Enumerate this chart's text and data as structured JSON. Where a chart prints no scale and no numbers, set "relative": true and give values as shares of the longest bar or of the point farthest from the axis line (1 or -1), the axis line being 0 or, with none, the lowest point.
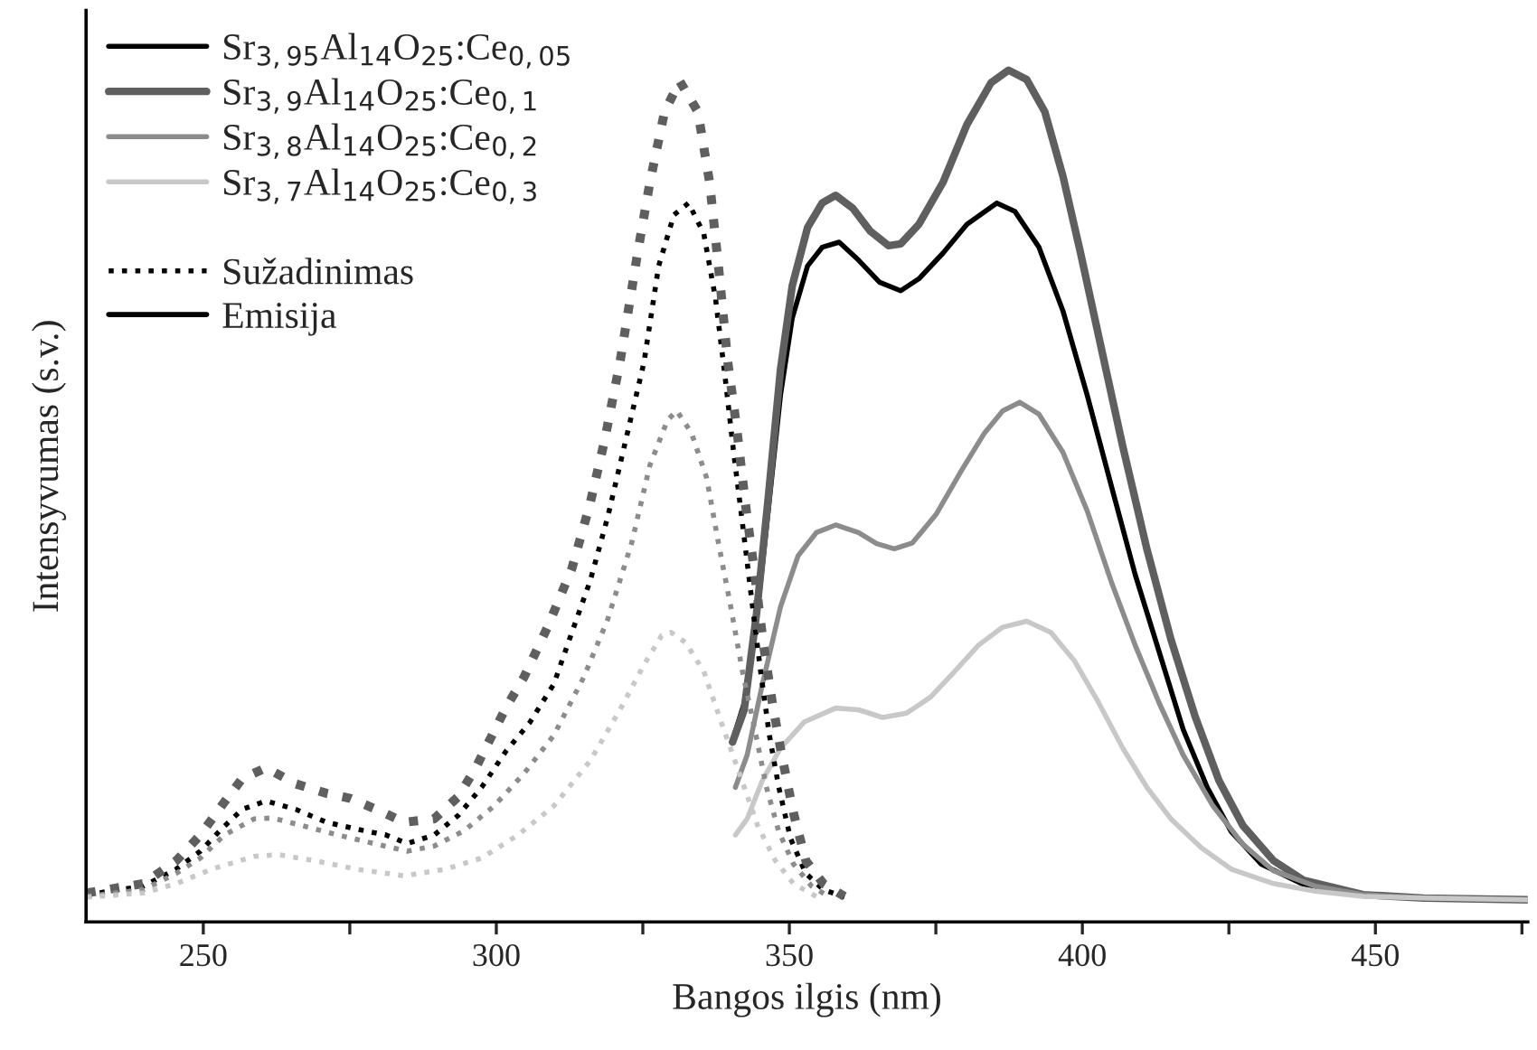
{
  "chart_data": {
    "type": "line",
    "relative": true,
    "xlabel": "Bangos ilgis (nm)",
    "ylabel": "Intensyvumas (s.v.)",
    "xlim": [
      230,
      476
    ],
    "xticks": [
      250,
      {
        "value": 275,
        "label": null
      },
      300,
      {
        "value": 325,
        "label": null
      },
      350,
      {
        "value": 375,
        "label": null
      },
      400,
      {
        "value": 425,
        "label": null
      },
      450,
      {
        "value": 475,
        "label": null
      }
    ],
    "legend": "top left",
    "grid": false,
    "annotations": [
      "Sužadinimas",
      "Emisija"
    ],
    "series": [
      {
        "name": "Sr$_{3,95}$Al$_{14}$O$_{25}$:Ce$_{0,05}$",
        "color": "#000000",
        "line_style": "solid",
        "x": [
          340.3,
          342.3,
          344.4,
          346.4,
          348.5,
          350.5,
          353.1,
          355.6,
          358.5,
          361.8,
          365.4,
          369.0,
          372.1,
          376.2,
          380.3,
          385.4,
          388.5,
          392.6,
          396.7,
          400.8,
          404.9,
          409.0,
          413.1,
          417.2,
          421.3,
          425.4,
          430.5,
          437.7,
          447.9,
          458.2,
          476
        ],
        "values": [
          0.213,
          0.257,
          0.355,
          0.483,
          0.619,
          0.709,
          0.77,
          0.792,
          0.798,
          0.777,
          0.751,
          0.741,
          0.755,
          0.785,
          0.819,
          0.844,
          0.834,
          0.792,
          0.717,
          0.619,
          0.513,
          0.408,
          0.317,
          0.226,
          0.158,
          0.106,
          0.068,
          0.044,
          0.032,
          0.028,
          0.026
        ]
      },
      {
        "name": "Sr$_{3,9}$Al$_{14}$O$_{25}$:Ce$_{0,1}$",
        "color": "#5f5f5f",
        "line_style": "solid",
        "x": [
          340.3,
          342.3,
          344.4,
          346.4,
          348.5,
          350.5,
          353.1,
          355.6,
          357.9,
          360.8,
          363.8,
          366.9,
          369.0,
          372.1,
          376.2,
          380.3,
          384.4,
          387.4,
          390.5,
          393.6,
          396.7,
          399.7,
          402.8,
          406.9,
          411.0,
          415.1,
          419.2,
          423.3,
          427.4,
          432.6,
          437.7,
          447.9,
          458.2,
          476
        ],
        "values": [
          0.211,
          0.249,
          0.362,
          0.498,
          0.649,
          0.747,
          0.815,
          0.844,
          0.853,
          0.838,
          0.811,
          0.794,
          0.796,
          0.819,
          0.868,
          0.936,
          0.985,
          1,
          0.989,
          0.951,
          0.875,
          0.785,
          0.687,
          0.558,
          0.438,
          0.332,
          0.242,
          0.166,
          0.113,
          0.072,
          0.049,
          0.032,
          0.028,
          0.026
        ]
      },
      {
        "name": "Sr$_{3,8}$Al$_{14}$O$_{25}$:Ce$_{0,2}$",
        "color": "#8c8c8c",
        "line_style": "solid",
        "x": [
          340.8,
          342.8,
          345.4,
          348.5,
          351.5,
          354.6,
          357.9,
          361.8,
          364.9,
          367.9,
          371.0,
          375.1,
          379.2,
          383.3,
          386.4,
          389.3,
          392.6,
          396.7,
          400.8,
          404.9,
          409.0,
          413.1,
          417.2,
          422.3,
          427.4,
          432.6,
          439.7,
          447.9,
          458.2,
          476
        ],
        "values": [
          0.158,
          0.196,
          0.279,
          0.37,
          0.43,
          0.457,
          0.466,
          0.457,
          0.444,
          0.438,
          0.445,
          0.479,
          0.528,
          0.574,
          0.6,
          0.61,
          0.596,
          0.551,
          0.483,
          0.4,
          0.325,
          0.257,
          0.196,
          0.136,
          0.091,
          0.06,
          0.042,
          0.032,
          0.028,
          0.026
        ]
      },
      {
        "name": "Sr$_{3,7}$Al$_{14}$O$_{25}$:Ce$_{0,3}$",
        "color": "#c8c8c8",
        "line_style": "solid",
        "x": [
          340.8,
          342.8,
          345.4,
          348.5,
          352.6,
          357.9,
          361.8,
          365.9,
          370.0,
          374.1,
          378.2,
          382.3,
          386.4,
          390.5,
          394.6,
          398.7,
          402.8,
          406.9,
          411.0,
          415.1,
          420.3,
          425.4,
          432.6,
          439.7,
          447.9,
          458.2,
          476
        ],
        "values": [
          0.102,
          0.121,
          0.166,
          0.204,
          0.235,
          0.251,
          0.249,
          0.24,
          0.245,
          0.264,
          0.294,
          0.325,
          0.346,
          0.353,
          0.34,
          0.306,
          0.257,
          0.204,
          0.158,
          0.121,
          0.087,
          0.062,
          0.045,
          0.036,
          0.03,
          0.028,
          0.026
        ]
      },
      {
        "color": "#000000",
        "line_style": "dotted",
        "x": [
          230.1,
          239.8,
          245.4,
          249.5,
          253.1,
          256.6,
          260.7,
          265.8,
          271.0,
          276.1,
          281.2,
          284.8,
          289.4,
          293.5,
          297.5,
          301.6,
          305.7,
          309.8,
          312.9,
          316.0,
          319.0,
          322.1,
          325.2,
          327.7,
          330.3,
          332.8,
          335.4,
          337.4,
          339.0,
          340.5,
          342.0,
          343.6,
          345.1,
          346.6,
          348.2,
          350.2,
          352.8,
          355.8,
          359.4
        ],
        "values": [
          0.032,
          0.042,
          0.062,
          0.083,
          0.109,
          0.132,
          0.142,
          0.132,
          0.117,
          0.109,
          0.102,
          0.092,
          0.102,
          0.125,
          0.158,
          0.2,
          0.234,
          0.279,
          0.34,
          0.4,
          0.475,
          0.566,
          0.657,
          0.77,
          0.83,
          0.844,
          0.808,
          0.732,
          0.642,
          0.551,
          0.468,
          0.377,
          0.294,
          0.219,
          0.158,
          0.098,
          0.057,
          0.038,
          0.029
        ]
      },
      {
        "color": "#5f5f5f",
        "line_style": "dotted",
        "x": [
          230.1,
          239.8,
          245.4,
          249.5,
          253.1,
          256.6,
          260.7,
          265.8,
          271.0,
          275.1,
          280.2,
          284.3,
          289.4,
          293.5,
          296.5,
          301.6,
          304.7,
          308.8,
          312.9,
          316.0,
          318.5,
          321.1,
          324.1,
          326.2,
          328.7,
          331.3,
          334.4,
          336.4,
          337.9,
          339.5,
          341.0,
          342.5,
          344.1,
          345.6,
          347.1,
          348.7,
          350.7,
          352.8,
          355.8,
          359.4
        ],
        "values": [
          0.034,
          0.045,
          0.072,
          0.102,
          0.136,
          0.168,
          0.181,
          0.162,
          0.151,
          0.145,
          0.13,
          0.117,
          0.121,
          0.147,
          0.181,
          0.251,
          0.287,
          0.347,
          0.415,
          0.491,
          0.566,
          0.657,
          0.785,
          0.868,
          0.951,
          0.987,
          0.951,
          0.868,
          0.77,
          0.657,
          0.581,
          0.491,
          0.408,
          0.325,
          0.257,
          0.196,
          0.128,
          0.072,
          0.045,
          0.03
        ]
      },
      {
        "color": "#8c8c8c",
        "line_style": "dotted",
        "x": [
          230.1,
          239.8,
          245.4,
          249.5,
          253.6,
          258.7,
          261.8,
          266.9,
          273.0,
          279.1,
          284.8,
          289.4,
          294.5,
          299.6,
          304.7,
          309.8,
          314.9,
          319.0,
          323.1,
          326.2,
          329.2,
          330.8,
          333.3,
          335.9,
          337.9,
          340.0,
          342.0,
          344.1,
          346.1,
          348.2,
          350.7,
          353.8,
          356.9
        ],
        "values": [
          0.03,
          0.038,
          0.057,
          0.075,
          0.102,
          0.121,
          0.122,
          0.113,
          0.102,
          0.092,
          0.083,
          0.089,
          0.107,
          0.136,
          0.174,
          0.219,
          0.287,
          0.355,
          0.445,
          0.536,
          0.589,
          0.6,
          0.574,
          0.521,
          0.445,
          0.37,
          0.294,
          0.226,
          0.158,
          0.106,
          0.068,
          0.042,
          0.029
        ]
      },
      {
        "color": "#c8c8c8",
        "line_style": "dotted",
        "x": [
          230.1,
          239.8,
          245.4,
          251.5,
          258.7,
          262.8,
          268.9,
          276.1,
          284.3,
          291.4,
          297.5,
          303.7,
          309.8,
          316.0,
          321.1,
          325.2,
          328.2,
          329.8,
          332.3,
          335.4,
          338.4,
          341.5,
          344.6,
          347.6,
          350.7,
          354.8
        ],
        "values": [
          0.029,
          0.034,
          0.045,
          0.062,
          0.077,
          0.079,
          0.072,
          0.062,
          0.054,
          0.062,
          0.075,
          0.102,
          0.136,
          0.189,
          0.249,
          0.302,
          0.336,
          0.34,
          0.328,
          0.294,
          0.234,
          0.174,
          0.113,
          0.072,
          0.045,
          0.029
        ]
      }
    ]
  }
}
